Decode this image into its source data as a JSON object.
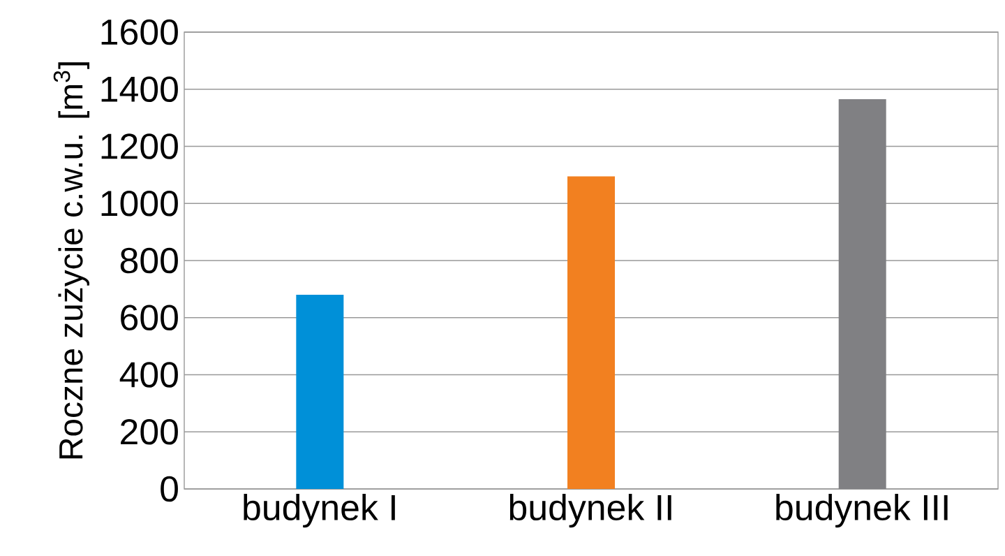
{
  "chart_data": {
    "type": "bar",
    "ylabel": "Roczne zużycie c.w.u. [m$^{3}$]",
    "categories": [
      "budynek I",
      "budynek II",
      "budynek III"
    ],
    "values": [
      680,
      1095,
      1365
    ],
    "colors": [
      "#0090d8",
      "#f28020",
      "#808083"
    ],
    "ylim": [
      0,
      1600
    ],
    "yticks": [
      0,
      200,
      400,
      600,
      800,
      1000,
      1200,
      1400,
      1600
    ],
    "grid": "y"
  }
}
